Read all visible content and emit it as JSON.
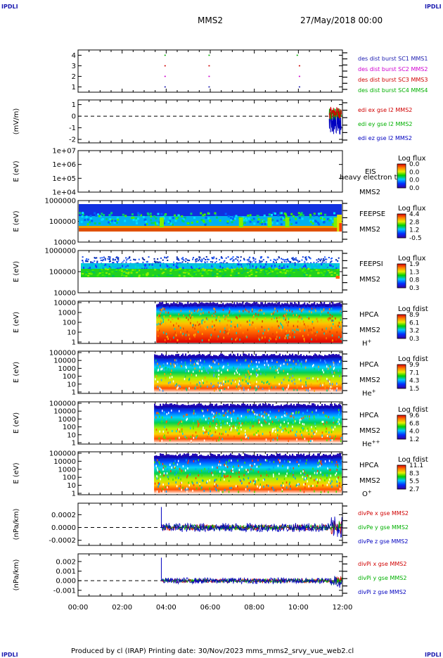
{
  "header": {
    "corner_label": "IPDLI",
    "spacecraft": "MMS2",
    "datetime": "27/May/2018 00:00"
  },
  "footer": {
    "text": "Produced by cl (IRAP)    Printing date: 30/Nov/2023    mms_mms2_srvy_vue_web2.cl"
  },
  "colors": {
    "mms1": "#1a1ab0",
    "mms2": "#d000d0",
    "mms3": "#d00000",
    "mms4": "#00b000",
    "x": "#d00000",
    "y": "#00b000",
    "z": "#0000c0"
  },
  "chart_data": [
    {
      "type": "scatter",
      "panel": "burst",
      "yticks": [
        "1",
        "2",
        "3",
        "4"
      ],
      "ylim": [
        0.5,
        4.5
      ],
      "legend": [
        {
          "name": "des dist burst SC1 MMS1",
          "color": "#1a1ab0"
        },
        {
          "name": "des dist burst SC2 MMS2",
          "color": "#d000d0"
        },
        {
          "name": "des dist burst SC3 MMS3",
          "color": "#d00000"
        },
        {
          "name": "des dist burst SC4 MMS4",
          "color": "#00b000"
        }
      ],
      "intervals": [
        {
          "sc": 4,
          "times": [
            3.95,
            5.95,
            9.95
          ]
        },
        {
          "sc": 3,
          "times": [
            3.95,
            5.95,
            10.05
          ]
        },
        {
          "sc": 2,
          "times": [
            3.95,
            5.95,
            10.05
          ]
        },
        {
          "sc": 1,
          "times": [
            3.95,
            5.95,
            10.05
          ]
        }
      ]
    },
    {
      "type": "line",
      "panel": "edp",
      "ylabel": "(mV/m)",
      "yticks": [
        "1",
        "0",
        "-1",
        "-2"
      ],
      "ylim": [
        -2.3,
        1.4
      ],
      "series": [
        {
          "name": "edi ex gse l2 MMS2",
          "color": "#d00000"
        },
        {
          "name": "edi ey gse l2 MMS2",
          "color": "#00b000"
        },
        {
          "name": "edi ez gse l2 MMS2",
          "color": "#0000c0"
        }
      ]
    },
    {
      "type": "heatmap",
      "panel": "eis",
      "ylabel": "E (eV)",
      "yticks": [
        "1e+07",
        "1e+06",
        "1e+05",
        "1e+04"
      ],
      "instrument": "EIS",
      "overlay_text": "heavy electron to",
      "spacecraft": "MMS2",
      "cbar_title": "Log flux",
      "cbar_ticks": [
        "0.0",
        "0.0",
        "0.0",
        "0.0"
      ]
    },
    {
      "type": "heatmap",
      "panel": "feeps_e",
      "ylabel": "E (eV)",
      "yticks": [
        "1000000",
        "100000",
        "10000"
      ],
      "instrument": "FEEPSE",
      "spacecraft": "MMS2",
      "cbar_title": "Log flux",
      "cbar_ticks": [
        "4.4",
        "2.8",
        "1.2",
        "-0.5"
      ]
    },
    {
      "type": "heatmap",
      "panel": "feeps_i",
      "ylabel": "E (eV)",
      "yticks": [
        "1000000",
        "100000",
        "10000"
      ],
      "instrument": "FEEPSI",
      "spacecraft": "MMS2",
      "cbar_title": "Log flux",
      "cbar_ticks": [
        "1.9",
        "1.3",
        "0.8",
        "0.3"
      ]
    },
    {
      "type": "heatmap",
      "panel": "hpca_h",
      "ylabel": "E (eV)",
      "yticks": [
        "10000",
        "1000",
        "100",
        "10",
        "1"
      ],
      "instrument": "HPCA",
      "spacecraft": "MMS2",
      "species": "H",
      "species_charge": "+",
      "cbar_title": "Log fdist",
      "cbar_ticks": [
        "8.9",
        "6.1",
        "3.2",
        "0.3"
      ]
    },
    {
      "type": "heatmap",
      "panel": "hpca_he",
      "ylabel": "E (eV)",
      "yticks": [
        "100000",
        "10000",
        "1000",
        "100",
        "10",
        "1"
      ],
      "instrument": "HPCA",
      "spacecraft": "MMS2",
      "species": "He",
      "species_charge": "+",
      "cbar_title": "Log fdist",
      "cbar_ticks": [
        "9.9",
        "7.1",
        "4.3",
        "1.5"
      ]
    },
    {
      "type": "heatmap",
      "panel": "hpca_hepp",
      "ylabel": "E (eV)",
      "yticks": [
        "100000",
        "10000",
        "1000",
        "100",
        "10",
        "1"
      ],
      "instrument": "HPCA",
      "spacecraft": "MMS2",
      "species": "He",
      "species_charge": "++",
      "cbar_title": "Log fdist",
      "cbar_ticks": [
        "9.6",
        "6.8",
        "4.0",
        "1.2"
      ]
    },
    {
      "type": "heatmap",
      "panel": "hpca_o",
      "ylabel": "E (eV)",
      "yticks": [
        "100000",
        "10000",
        "1000",
        "100",
        "10",
        "1"
      ],
      "instrument": "HPCA",
      "spacecraft": "MMS2",
      "species": "O",
      "species_charge": "+",
      "cbar_title": "Log fdist",
      "cbar_ticks": [
        "11.1",
        "8.3",
        "5.5",
        "2.7"
      ]
    },
    {
      "type": "line",
      "panel": "divpe",
      "ylabel": "(nPa/km)",
      "yticks": [
        "0.0002",
        "0.0000",
        "-0.0002"
      ],
      "ylim": [
        -0.00028,
        0.00038
      ],
      "series": [
        {
          "name": "divPe x gse MMS2",
          "color": "#d00000"
        },
        {
          "name": "divPe y gse MMS2",
          "color": "#00b000"
        },
        {
          "name": "divPe z gse MMS2",
          "color": "#0000c0"
        }
      ]
    },
    {
      "type": "line",
      "panel": "divpi",
      "ylabel": "(nPa/km)",
      "yticks": [
        "0.002",
        "0.001",
        "0.000",
        "-0.001"
      ],
      "ylim": [
        -0.0016,
        0.0028
      ],
      "series": [
        {
          "name": "divPi x gse MMS2",
          "color": "#d00000"
        },
        {
          "name": "divPi y gse MMS2",
          "color": "#00b000"
        },
        {
          "name": "divPi z gse MMS2",
          "color": "#0000c0"
        }
      ]
    }
  ],
  "xaxis": {
    "tick_labels": [
      "00:00",
      "02:00",
      "04:00",
      "06:00",
      "08:00",
      "10:00",
      "12:00"
    ],
    "range_hours": [
      0,
      12
    ]
  }
}
